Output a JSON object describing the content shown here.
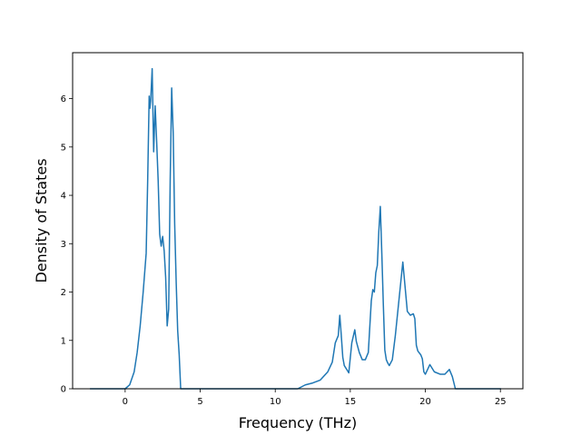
{
  "chart_data": {
    "type": "line",
    "title": "",
    "xlabel": "Frequency (THz)",
    "ylabel": "Density of States",
    "xlim": [
      -3.5,
      26.5
    ],
    "ylim": [
      0,
      6.95
    ],
    "xticks": [
      0,
      5,
      10,
      15,
      20,
      25
    ],
    "yticks": [
      0,
      1,
      2,
      3,
      4,
      5,
      6
    ],
    "xtick_labels": [
      "0",
      "5",
      "10",
      "15",
      "20",
      "25"
    ],
    "ytick_labels": [
      "0",
      "1",
      "2",
      "3",
      "4",
      "5",
      "6"
    ],
    "grid": false,
    "legend": "none",
    "series": [
      {
        "color": "#1f77b4",
        "x": [
          -2.3,
          0.0,
          0.3,
          0.6,
          0.8,
          1.0,
          1.2,
          1.4,
          1.5,
          1.6,
          1.65,
          1.7,
          1.8,
          1.9,
          2.0,
          2.1,
          2.2,
          2.3,
          2.4,
          2.5,
          2.6,
          2.7,
          2.8,
          2.9,
          3.0,
          3.1,
          3.2,
          3.3,
          3.4,
          3.5,
          3.6,
          3.7,
          3.8,
          3.9,
          4.0,
          4.1,
          4.2,
          4.3,
          4.4,
          4.5,
          5.0,
          10.0,
          11.0,
          11.5,
          12.0,
          12.5,
          13.0,
          13.5,
          13.8,
          14.0,
          14.2,
          14.3,
          14.4,
          14.5,
          14.6,
          14.9,
          15.1,
          15.3,
          15.4,
          15.6,
          15.8,
          16.0,
          16.2,
          16.4,
          16.5,
          16.6,
          16.7,
          16.8,
          16.9,
          17.0,
          17.1,
          17.2,
          17.3,
          17.4,
          17.5,
          17.6,
          17.8,
          18.0,
          18.5,
          18.8,
          19.0,
          19.2,
          19.3,
          19.4,
          19.5,
          19.7,
          19.8,
          19.9,
          20.0,
          20.3,
          20.6,
          21.0,
          21.3,
          21.6,
          21.8,
          22.0,
          22.3,
          22.6,
          22.8,
          23.0,
          25.0
        ],
        "y": [
          0.0,
          0.0,
          0.08,
          0.35,
          0.75,
          1.3,
          2.0,
          2.8,
          4.3,
          6.05,
          5.8,
          5.95,
          6.62,
          4.9,
          5.85,
          5.1,
          4.3,
          3.2,
          2.95,
          3.15,
          2.85,
          2.3,
          1.3,
          1.65,
          4.3,
          6.22,
          5.3,
          3.4,
          2.2,
          1.2,
          0.7,
          0.0,
          0.0,
          0.0,
          0.0,
          0.0,
          0.0,
          0.0,
          0.0,
          0.0,
          0.0,
          0.0,
          0.0,
          0.0,
          0.08,
          0.12,
          0.18,
          0.35,
          0.55,
          0.95,
          1.1,
          1.52,
          1.1,
          0.65,
          0.48,
          0.33,
          0.95,
          1.22,
          0.98,
          0.75,
          0.6,
          0.6,
          0.75,
          1.82,
          2.05,
          2.0,
          2.4,
          2.55,
          3.25,
          3.77,
          2.8,
          1.75,
          0.8,
          0.6,
          0.53,
          0.48,
          0.6,
          1.1,
          2.62,
          1.6,
          1.52,
          1.55,
          1.45,
          0.9,
          0.78,
          0.7,
          0.62,
          0.35,
          0.3,
          0.5,
          0.35,
          0.3,
          0.3,
          0.4,
          0.25,
          0.0,
          0.0,
          0.0,
          0.0,
          0.0,
          0.0
        ]
      }
    ]
  }
}
